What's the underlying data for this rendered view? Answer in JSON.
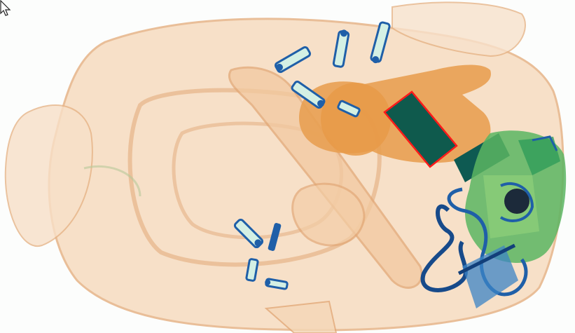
{
  "scan": {
    "colors": {
      "background": "#fbfcfb",
      "organic_light": "#f3c9a0",
      "organic_outline": "#e2a877",
      "organic_dense": "#e79a48",
      "inorganic_green": "#3aa85a",
      "inorganic_light_green": "#8fd07a",
      "metal_blue": "#1f5fa8",
      "metal_dark_blue": "#123f7a",
      "dense_teal": "#0d5a4c",
      "dark_core": "#1c2a3a",
      "detection_box": "#ff1a1a"
    },
    "objects": [
      {
        "name": "backpack",
        "material": "organic"
      },
      {
        "name": "zipper-pulls",
        "material": "metal"
      },
      {
        "name": "bottle",
        "material": "organic-dense"
      },
      {
        "name": "flagged-item",
        "material": "dense",
        "flagged": true
      },
      {
        "name": "power-bank",
        "material": "dense"
      },
      {
        "name": "electronics-cluster",
        "material": "inorganic"
      },
      {
        "name": "cable-loop",
        "material": "metal"
      }
    ]
  }
}
